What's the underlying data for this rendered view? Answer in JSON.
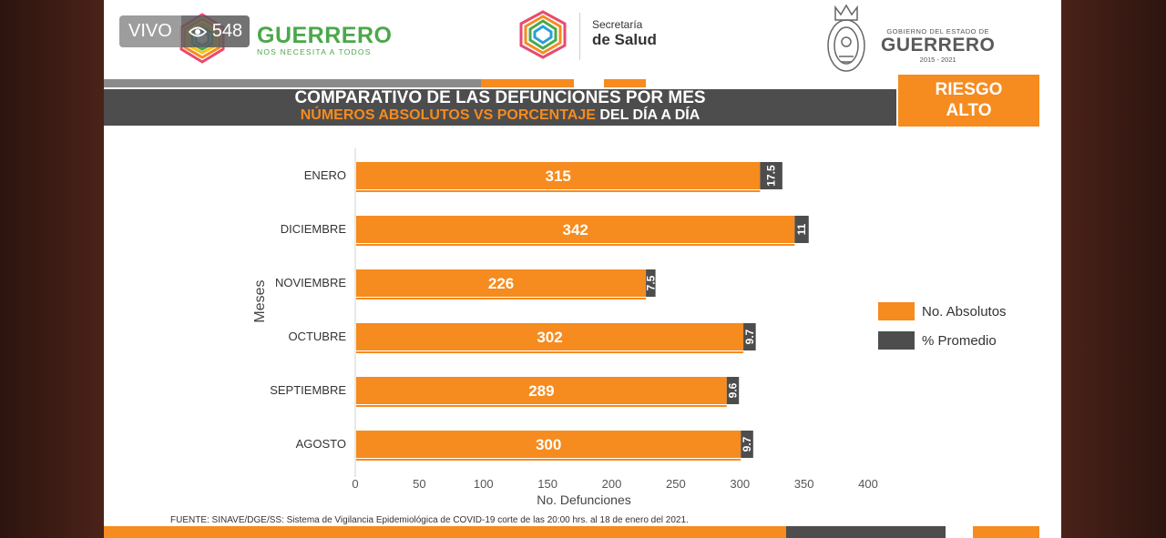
{
  "live": {
    "label": "VIVO",
    "viewers": "548"
  },
  "header": {
    "state_brand": {
      "title": "GUERRERO",
      "subtitle": "NOS NECESITA A TODOS"
    },
    "ministry": {
      "line1": "Secretaría",
      "line2": "de Salud"
    },
    "government": {
      "line1": "GOBIERNO DEL ESTADO DE",
      "line2": "GUERRERO",
      "years": "2015 - 2021"
    }
  },
  "banner": {
    "line1": "COMPARATIVO DE LAS DEFUNCIONES POR MES",
    "line2_highlight": "NÚMEROS ABSOLUTOS VS PORCENTAJE",
    "line2_rest": " DEL DÍA A DÍA"
  },
  "risk": {
    "line1": "RIESGO",
    "line2": "ALTO"
  },
  "source": "FUENTE: SINAVE/DGE/SS: Sistema de Vigilancia Epidemiológica de COVID-19 corte de las 20:00 hrs. al 18 de  enero del 2021.",
  "colors": {
    "orange": "#f68b1f",
    "dark": "#4d4d4d",
    "green": "#4aa84a"
  },
  "chart_data": {
    "type": "bar",
    "orientation": "horizontal",
    "categories": [
      "ENERO",
      "DICIEMBRE",
      "NOVIEMBRE",
      "OCTUBRE",
      "SEPTIEMBRE",
      "AGOSTO"
    ],
    "series": [
      {
        "name": "No. Absolutos",
        "values": [
          315,
          342,
          226,
          302,
          289,
          300
        ],
        "color": "#f68b1f"
      },
      {
        "name": "% Promedio",
        "values": [
          17.5,
          11,
          7.5,
          9.7,
          9.6,
          9.7
        ],
        "color": "#4d4d4d"
      }
    ],
    "xlabel": "No. Defunciones",
    "ylabel": "Meses",
    "xlim": [
      0,
      400
    ],
    "xticks": [
      "0",
      "50",
      "100",
      "150",
      "200",
      "250",
      "300",
      "350",
      "400"
    ],
    "legend": "right",
    "grid": false
  }
}
